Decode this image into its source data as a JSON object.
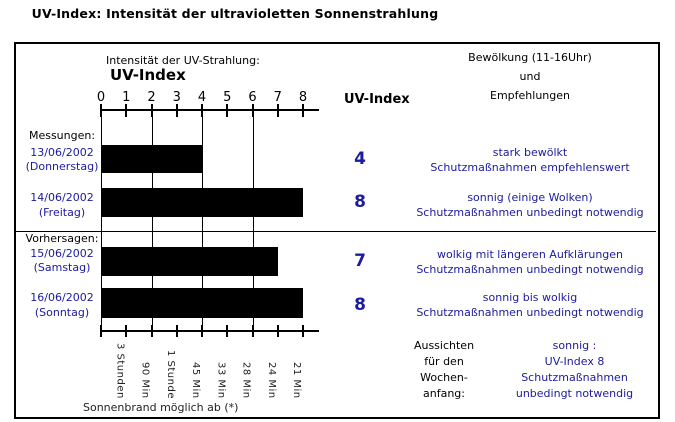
{
  "title": "UV-Index: Intensität der ultravioletten Sonnenstrahlung",
  "colors": {
    "accent_blue": "#1b1b9e",
    "bar": "#000000"
  },
  "header": {
    "intensity_label": "Intensität der UV-Strahlung:",
    "uv_index_big": "UV-Index",
    "uv_index_col": "UV-Index",
    "cloud_line1": "Bewölkung (11-16Uhr)",
    "cloud_line2": "und",
    "cloud_line3": "Empfehlungen"
  },
  "sections": {
    "measured": "Messungen:",
    "forecast": "Vorhersagen:"
  },
  "rows": [
    {
      "date": "13/06/2002",
      "weekday": "(Donnerstag)",
      "uv": "4",
      "cond": "stark bewölkt",
      "advice": "Schutzmaßnahmen empfehlenswert"
    },
    {
      "date": "14/06/2002",
      "weekday": "(Freitag)",
      "uv": "8",
      "cond": "sonnig (einige Wolken)",
      "advice": "Schutzmaßnahmen unbedingt notwendig"
    },
    {
      "date": "15/06/2002",
      "weekday": "(Samstag)",
      "uv": "7",
      "cond": "wolkig mit längeren Aufklärungen",
      "advice": "Schutzmaßnahmen unbedingt notwendig"
    },
    {
      "date": "16/06/2002",
      "weekday": "(Sonntag)",
      "uv": "8",
      "cond": "sonnig bis wolkig",
      "advice": "Schutzmaßnahmen unbedingt notwendig"
    }
  ],
  "outlook": {
    "label_lines": [
      "Aussichten",
      "für den",
      "Wochen-",
      "anfang:"
    ],
    "value_lines": [
      "sonnig :",
      "UV-Index 8",
      "Schutzmaßnahmen",
      "unbedingt notwendig"
    ]
  },
  "footer_note": "Sonnenbrand möglich ab (*)",
  "chart_data": {
    "type": "bar",
    "orientation": "horizontal",
    "title": "UV-Index: Intensität der ultravioletten Sonnenstrahlung",
    "xlabel": "UV-Index",
    "xlim": [
      0,
      8
    ],
    "x_ticks": [
      0,
      1,
      2,
      3,
      4,
      5,
      6,
      7,
      8
    ],
    "gridlines_at": [
      0,
      2,
      4,
      6
    ],
    "categories": [
      "13/06/2002 (Donnerstag)",
      "14/06/2002 (Freitag)",
      "15/06/2002 (Samstag)",
      "16/06/2002 (Sonntag)"
    ],
    "values": [
      4,
      8,
      7,
      8
    ],
    "bar_color": "#000000",
    "sunburn_labels": [
      "3 Stunden",
      "90 Min",
      "1 Stunde",
      "45 Min",
      "33 Min",
      "28 Min",
      "24 Min",
      "21 Min"
    ],
    "sunburn_note": "Sonnenbrand möglich ab (*)"
  }
}
